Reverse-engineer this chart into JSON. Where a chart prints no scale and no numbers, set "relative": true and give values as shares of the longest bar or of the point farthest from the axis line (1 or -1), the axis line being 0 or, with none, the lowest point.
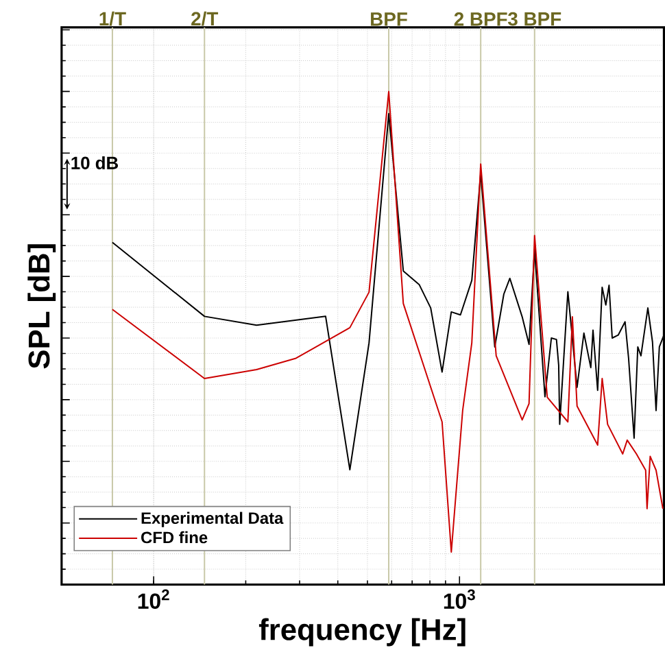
{
  "chart_data": {
    "type": "line",
    "xlabel": "frequency [Hz]",
    "ylabel": "SPL [dB]",
    "relative": true,
    "log": "x",
    "xlim": [
      50,
      4660
    ],
    "xticks": [
      {
        "value": 100,
        "label": "10$^{2}$"
      },
      {
        "value": 1000,
        "label": "10$^{3}$"
      }
    ],
    "tick_labels": "x",
    "grid": true,
    "legend": "bottom left",
    "marker": "none",
    "line_style": "solid",
    "annotations": [
      "10 dB"
    ],
    "ref_lines": [
      {
        "axis": "x",
        "value": 73.3,
        "label": "1/T",
        "color": "#c8c8a8"
      },
      {
        "axis": "x",
        "value": 146.6,
        "label": "2/T",
        "color": "#c8c8a8"
      },
      {
        "axis": "x",
        "value": 587,
        "label": "BPF",
        "color": "#c8c8a8"
      },
      {
        "axis": "x",
        "value": 1173,
        "label": "2 BPF",
        "color": "#c8c8a8"
      },
      {
        "axis": "x",
        "value": 1760,
        "label": "3 BPF",
        "color": "#c8c8a8"
      }
    ],
    "series": [
      {
        "name": "Experimental Data",
        "color": "#000000",
        "x": [
          73.3,
          146.6,
          217,
          365,
          438,
          506,
          587,
          655,
          739,
          805,
          877,
          940,
          1007,
          1097,
          1173,
          1304,
          1396,
          1461,
          1603,
          1688,
          1760,
          1903,
          1997,
          2075,
          2110,
          2126,
          2261,
          2423,
          2551,
          2687,
          2732,
          2829,
          2927,
          3009,
          3083,
          3157,
          3303,
          3478,
          3572,
          3723,
          3828,
          3920,
          4129,
          4276,
          4392,
          4502,
          4660
        ],
        "values": [
          0.694,
          0.544,
          0.526,
          0.544,
          0.233,
          0.49,
          0.955,
          0.636,
          0.608,
          0.561,
          0.431,
          0.553,
          0.547,
          0.617,
          0.835,
          0.482,
          0.589,
          0.621,
          0.543,
          0.487,
          0.68,
          0.381,
          0.5,
          0.497,
          0.445,
          0.325,
          0.594,
          0.4,
          0.51,
          0.44,
          0.516,
          0.394,
          0.603,
          0.567,
          0.607,
          0.5,
          0.506,
          0.533,
          0.459,
          0.297,
          0.482,
          0.464,
          0.561,
          0.492,
          0.353,
          0.482,
          0.506
        ]
      },
      {
        "name": "CFD fine",
        "color": "#cc0000",
        "x": [
          73.3,
          146.6,
          217,
          292,
          438,
          506,
          587,
          655,
          877,
          940,
          1024,
          1097,
          1173,
          1318,
          1603,
          1688,
          1760,
          1936,
          2261,
          2339,
          2423,
          2829,
          2927,
          3050,
          3417,
          3535,
          3789,
          4061,
          4104,
          4202,
          4392,
          4624
        ],
        "values": [
          0.558,
          0.418,
          0.436,
          0.459,
          0.521,
          0.593,
          1.0,
          0.57,
          0.33,
          0.066,
          0.353,
          0.49,
          0.853,
          0.464,
          0.334,
          0.367,
          0.708,
          0.38,
          0.33,
          0.543,
          0.362,
          0.283,
          0.418,
          0.325,
          0.265,
          0.293,
          0.265,
          0.232,
          0.154,
          0.26,
          0.232,
          0.154
        ]
      }
    ]
  }
}
